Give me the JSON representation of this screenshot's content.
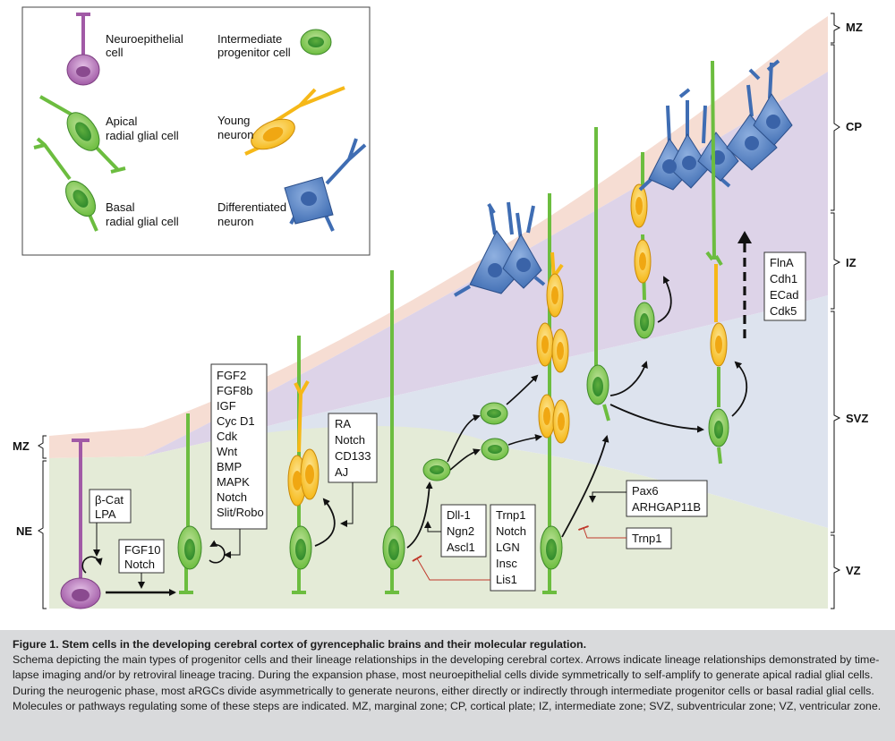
{
  "legend": {
    "neuroepithelial": [
      "Neuroepithelial",
      "cell"
    ],
    "intermediate": [
      "Intermediate",
      "progenitor cell"
    ],
    "apical_rg": [
      "Apical",
      "radial glial cell"
    ],
    "young_neuron": [
      "Young",
      "neuron"
    ],
    "basal_rg": [
      "Basal",
      "radial glial cell"
    ],
    "diff_neuron": [
      "Differentiated",
      "neuron"
    ]
  },
  "zones_right": [
    "MZ",
    "CP",
    "IZ",
    "SVZ",
    "VZ"
  ],
  "zones_left": [
    "MZ",
    "NE"
  ],
  "boxes": {
    "bcat": [
      "β-Cat",
      "LPA"
    ],
    "fgf10": [
      "FGF10",
      "Notch"
    ],
    "fgf2": [
      "FGF2",
      "FGF8b",
      "IGF",
      "Cyc D1",
      "Cdk",
      "Wnt",
      "BMP",
      "MAPK",
      "Notch",
      "Slit/Robo"
    ],
    "ra": [
      "RA",
      "Notch",
      "CD133",
      "AJ"
    ],
    "dll": [
      "Dll-1",
      "Ngn2",
      "Ascl1"
    ],
    "trnp_list": [
      "Trnp1",
      "Notch",
      "LGN",
      "Insc",
      "Lis1"
    ],
    "pax6": [
      "Pax6",
      "ARHGAP11B"
    ],
    "trnp1": [
      "Trnp1"
    ],
    "flna": [
      "FlnA",
      "Cdh1",
      "ECad",
      "Cdk5"
    ]
  },
  "colors": {
    "neuroepithelial": "#a15aa6",
    "radial_glia": "#6cbd3f",
    "young_neuron": "#f6b818",
    "diff_neuron": "#3f6db3",
    "ne_zone": "#e4ebd7",
    "mz_band": "#f6ddd3",
    "cp_band": "#ddd3e8",
    "svz_band": "#dde3ee",
    "inhibition": "#c0392b"
  },
  "caption": {
    "title": "Figure 1.   Stem cells in the developing cerebral cortex of gyrencephalic brains and their molecular regulation.",
    "body": "Schema depicting the main types of progenitor cells and their lineage relationships in the developing cerebral cortex. Arrows indicate lineage relationships demonstrated by time-lapse imaging and/or by retroviral lineage tracing. During the expansion phase, most neuroepithelial cells divide symmetrically to self-amplify to generate apical radial glial cells. During the neurogenic phase, most aRGCs divide asymmetrically to generate neurons, either directly or indirectly through intermediate progenitor cells or basal radial glial cells. Molecules or pathways regulating some of these steps are indicated. MZ, marginal zone; CP, cortical plate; IZ, intermediate zone; SVZ, subventricular zone; VZ, ventricular zone."
  }
}
